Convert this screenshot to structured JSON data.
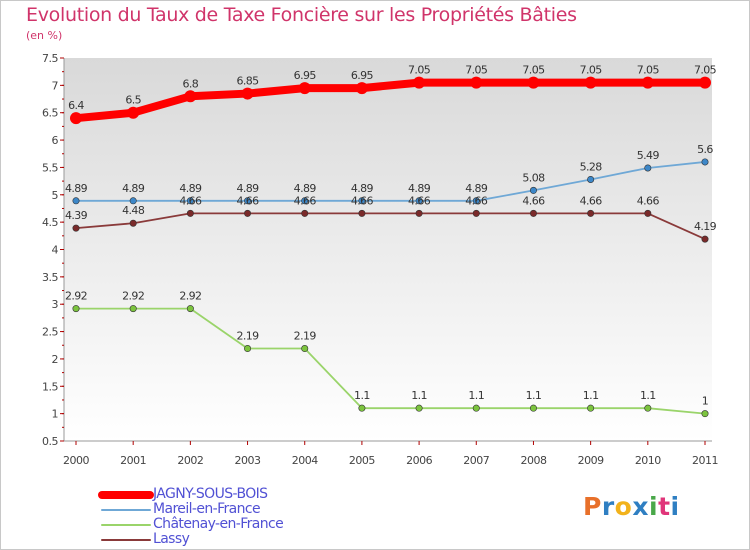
{
  "title": "Evolution du Taux de Taxe Foncière sur les Propriétés Bâties",
  "unit_label": "(en %)",
  "logo": {
    "letters": [
      "P",
      "r",
      "o",
      "x",
      "i",
      "t",
      "i"
    ],
    "colors": [
      "#e8702a",
      "#2f7fc2",
      "#f2b21b",
      "#2f7fc2",
      "#4aa84a",
      "#e0357a",
      "#2f7fc2"
    ]
  },
  "chart_data": {
    "type": "line",
    "title": "Evolution du Taux de Taxe Foncière sur les Propriétés Bâties",
    "xlabel": "",
    "ylabel": "(en %)",
    "x": [
      "2000",
      "2001",
      "2002",
      "2003",
      "2004",
      "2005",
      "2006",
      "2007",
      "2008",
      "2009",
      "2010",
      "2011"
    ],
    "ylim": [
      0.5,
      7.5
    ],
    "yticks": [
      "0.5",
      "1",
      "1.5",
      "2",
      "2.5",
      "3",
      "3.5",
      "4",
      "4.5",
      "5",
      "5.5",
      "6",
      "6.5",
      "7",
      "7.5"
    ],
    "grid": false,
    "legend_position": "bottom",
    "series": [
      {
        "name": "JAGNY-SOUS-BOIS",
        "color": "#ff0000",
        "emphasis": true,
        "values": [
          6.4,
          6.5,
          6.8,
          6.85,
          6.95,
          6.95,
          7.05,
          7.05,
          7.05,
          7.05,
          7.05,
          7.05
        ],
        "labels": [
          "6.4",
          "6.5",
          "6.8",
          "6.85",
          "6.95",
          "6.95",
          "7.05",
          "7.05",
          "7.05",
          "7.05",
          "7.05",
          "7.05"
        ]
      },
      {
        "name": "Mareil-en-France",
        "color": "#6fa8d6",
        "marker": "#3d87c8",
        "emphasis": false,
        "values": [
          4.89,
          4.89,
          4.89,
          4.89,
          4.89,
          4.89,
          4.89,
          4.89,
          5.08,
          5.28,
          5.49,
          5.6
        ],
        "labels": [
          "4.89",
          "4.89",
          "4.89",
          "4.89",
          "4.89",
          "4.89",
          "4.89",
          "4.89",
          "5.08",
          "5.28",
          "5.49",
          "5.6"
        ]
      },
      {
        "name": "Châtenay-en-France",
        "color": "#9ad46a",
        "marker": "#7cc43e",
        "emphasis": false,
        "values": [
          2.92,
          2.92,
          2.92,
          2.19,
          2.19,
          1.1,
          1.1,
          1.1,
          1.1,
          1.1,
          1.1,
          1.0
        ],
        "labels": [
          "2.92",
          "2.92",
          "2.92",
          "2.19",
          "2.19",
          "1.1",
          "1.1",
          "1.1",
          "1.1",
          "1.1",
          "1.1",
          "1"
        ]
      },
      {
        "name": "Lassy",
        "color": "#8a3a3a",
        "marker": "#7a2a2a",
        "emphasis": false,
        "values": [
          4.39,
          4.48,
          4.66,
          4.66,
          4.66,
          4.66,
          4.66,
          4.66,
          4.66,
          4.66,
          4.66,
          4.19
        ],
        "labels": [
          "4.39",
          "4.48",
          "4.66",
          "4.66",
          "4.66",
          "4.66",
          "4.66",
          "4.66",
          "4.66",
          "4.66",
          "4.66",
          "4.19"
        ]
      }
    ]
  }
}
